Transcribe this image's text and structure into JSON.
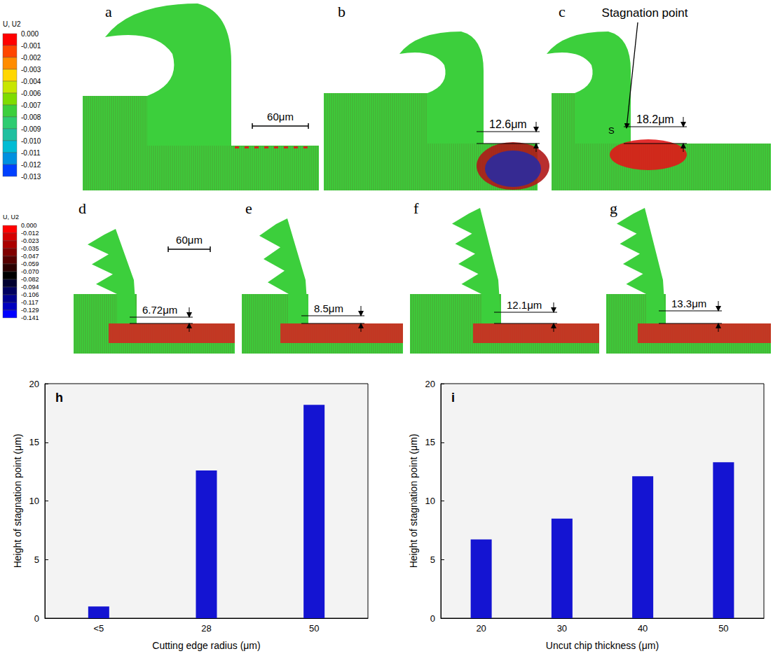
{
  "figure": {
    "row1": {
      "colorbar": {
        "title": "U, U2",
        "ticks": [
          "0.000",
          "-0.001",
          "-0.002",
          "-0.003",
          "-0.004",
          "-0.006",
          "-0.007",
          "-0.008",
          "-0.009",
          "-0.010",
          "-0.011",
          "-0.012",
          "-0.013"
        ],
        "colors": [
          "#ff0000",
          "#ff4500",
          "#ff8c00",
          "#ffd700",
          "#c8e600",
          "#7fdc00",
          "#3ccf3c",
          "#2ecc71",
          "#20c0a0",
          "#00bcd4",
          "#0090e0",
          "#0040ff"
        ]
      },
      "panels": [
        {
          "letter": "a",
          "scale_bar": "60μm"
        },
        {
          "letter": "b",
          "dimension": "12.6μm"
        },
        {
          "letter": "c",
          "dimension": "18.2μm",
          "annotation": "Stagnation point",
          "point_label": "S"
        }
      ]
    },
    "row2": {
      "colorbar": {
        "title": "U, U2",
        "ticks": [
          "0.000",
          "-0.012",
          "-0.023",
          "-0.035",
          "-0.047",
          "-0.059",
          "-0.070",
          "-0.082",
          "-0.094",
          "-0.106",
          "-0.117",
          "-0.129",
          "-0.141"
        ],
        "colors": [
          "#ff0000",
          "#d40000",
          "#aa0000",
          "#800000",
          "#550000",
          "#2a0000",
          "#000000",
          "#000030",
          "#000060",
          "#00008f",
          "#0000bf",
          "#0000ff"
        ]
      },
      "panels": [
        {
          "letter": "d",
          "scale_bar": "60μm",
          "dimension": "6.72μm"
        },
        {
          "letter": "e",
          "dimension": "8.5μm"
        },
        {
          "letter": "f",
          "dimension": "12.1μm"
        },
        {
          "letter": "g",
          "dimension": "13.3μm"
        }
      ]
    }
  },
  "chart_data": [
    {
      "type": "bar",
      "panel": "h",
      "categories": [
        "<5",
        "28",
        "50"
      ],
      "values": [
        1.0,
        12.6,
        18.2
      ],
      "color": "#1414d2",
      "xlabel": "Cutting edge radius (μm)",
      "ylabel": "Height of stagnation point (μm)",
      "ylim": [
        0,
        20
      ],
      "yticks": [
        0,
        5,
        10,
        15,
        20
      ],
      "grid": false
    },
    {
      "type": "bar",
      "panel": "i",
      "categories": [
        "20",
        "30",
        "40",
        "50"
      ],
      "values": [
        6.72,
        8.5,
        12.1,
        13.3
      ],
      "color": "#1414d2",
      "xlabel": "Uncut chip thickness (μm)",
      "ylabel": "Height of stagnation point (μm)",
      "ylim": [
        0,
        20
      ],
      "yticks": [
        0,
        5,
        10,
        15,
        20
      ],
      "grid": false
    }
  ]
}
